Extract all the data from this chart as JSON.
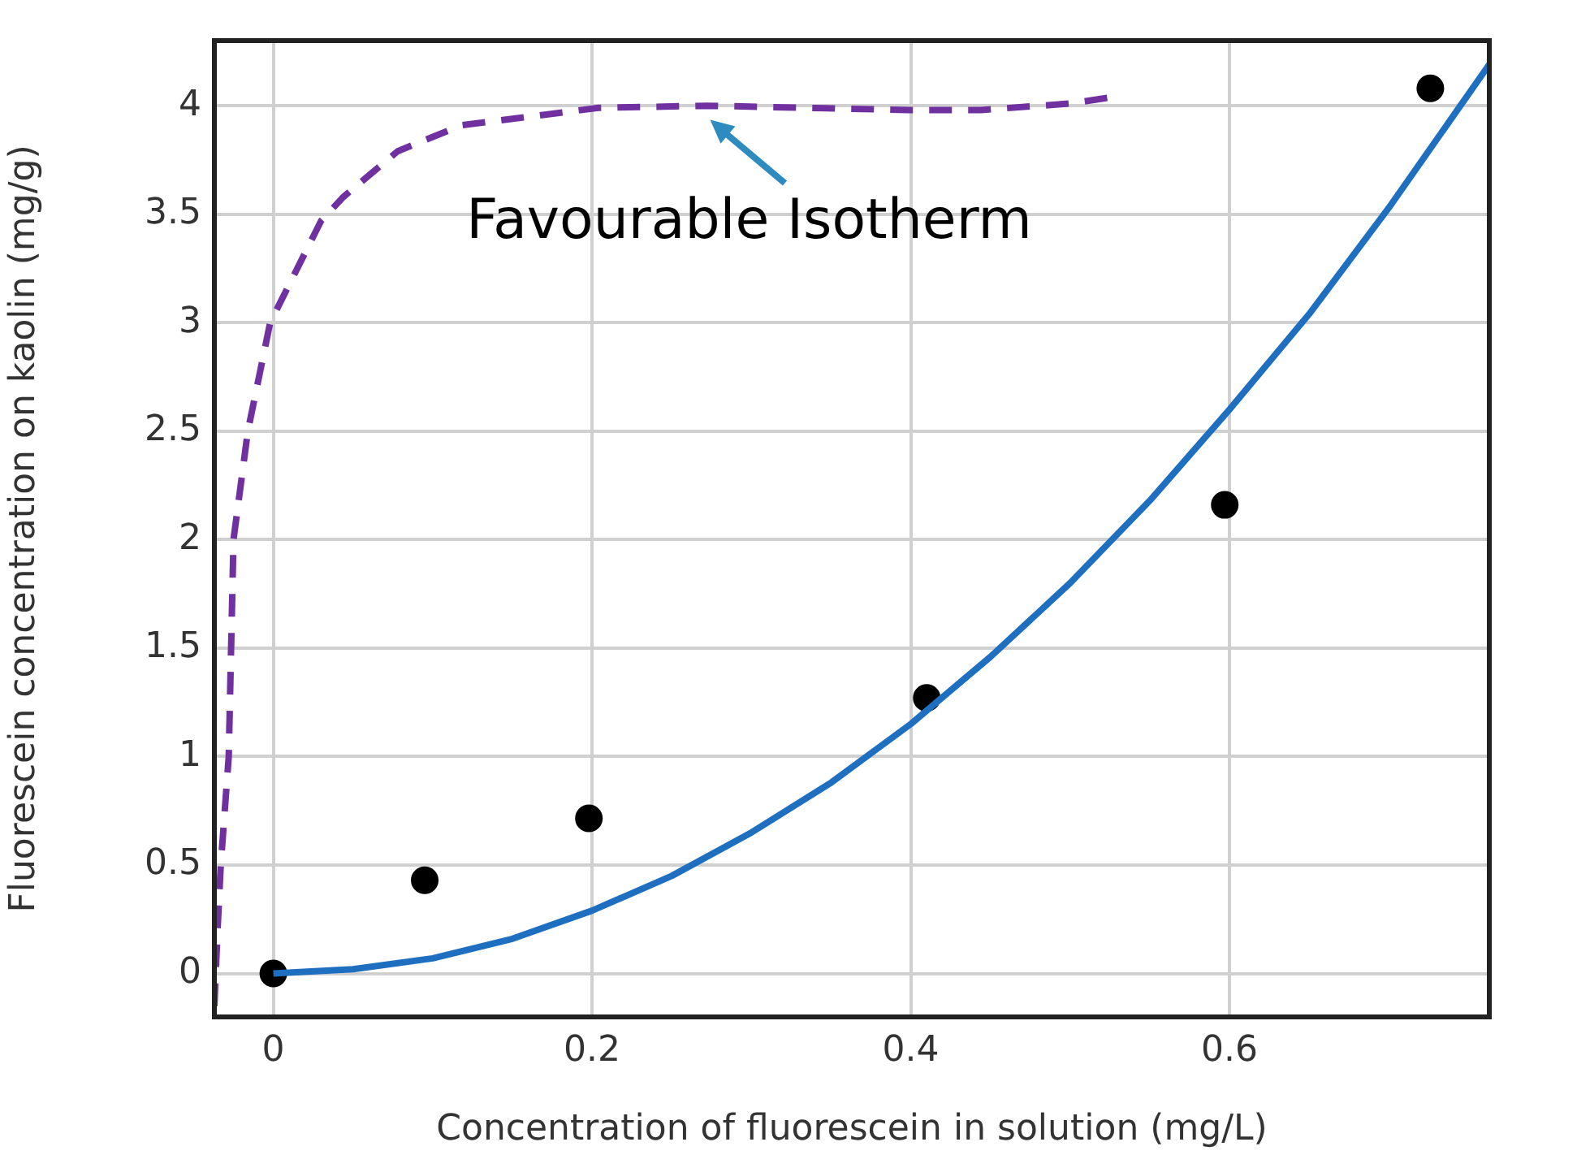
{
  "chart_data": {
    "type": "scatter",
    "xlabel": "Concentration of fluorescein in solution (mg/L)",
    "ylabel": "Fluorescein concentration on kaolin (mg/g)",
    "xlim": [
      -0.037,
      0.763
    ],
    "ylim": [
      -0.2,
      4.3
    ],
    "xticks": [
      0,
      0.2,
      0.4,
      0.6
    ],
    "yticks": [
      {
        "value": 0,
        "label": "0"
      },
      {
        "value": 0.5,
        "label": "0.5"
      },
      {
        "value": 1,
        "label": "1"
      },
      {
        "value": 1.5,
        "label": "1.5"
      },
      {
        "value": 2,
        "label": "2"
      },
      {
        "value": 2.5,
        "label": "2.5"
      },
      {
        "value": 3,
        "label": "3"
      },
      {
        "value": 3.5,
        "label": "3.5"
      },
      {
        "value": 4,
        "label": "4"
      }
    ],
    "grid": true,
    "legend": false,
    "annotations": [
      {
        "text": "Favourable Isotherm",
        "x": 0.27,
        "y": 3.98
      }
    ],
    "series": [
      {
        "type": "line",
        "color": "#7030a0",
        "line_style": "dashed",
        "marker": "none",
        "x": [
          -0.037,
          -0.035,
          -0.033,
          -0.028,
          -0.025,
          -0.016,
          -0.002,
          0.03,
          0.044,
          0.078,
          0.118,
          0.204,
          0.272,
          0.399,
          0.444,
          0.5,
          0.527
        ],
        "values": [
          -0.15,
          0.2,
          0.5,
          1.0,
          2.0,
          2.5,
          3.0,
          3.47,
          3.58,
          3.79,
          3.91,
          3.99,
          4.0,
          3.98,
          3.98,
          4.01,
          4.04
        ]
      },
      {
        "type": "line",
        "color": "#1f6fc0",
        "line_style": "solid",
        "marker": "none",
        "x": [
          0,
          0.05,
          0.1,
          0.15,
          0.2,
          0.25,
          0.3,
          0.35,
          0.4,
          0.45,
          0.5,
          0.55,
          0.6,
          0.65,
          0.7,
          0.763
        ],
        "values": [
          0,
          0.02,
          0.07,
          0.16,
          0.29,
          0.45,
          0.65,
          0.88,
          1.15,
          1.46,
          1.8,
          2.18,
          2.6,
          3.04,
          3.53,
          4.19
        ]
      },
      {
        "color": "#000000",
        "marker": "circle",
        "x": [
          0,
          0.095,
          0.198,
          0.41,
          0.597,
          0.726
        ],
        "values": [
          0,
          0.43,
          0.715,
          1.27,
          2.16,
          4.08
        ]
      }
    ]
  }
}
